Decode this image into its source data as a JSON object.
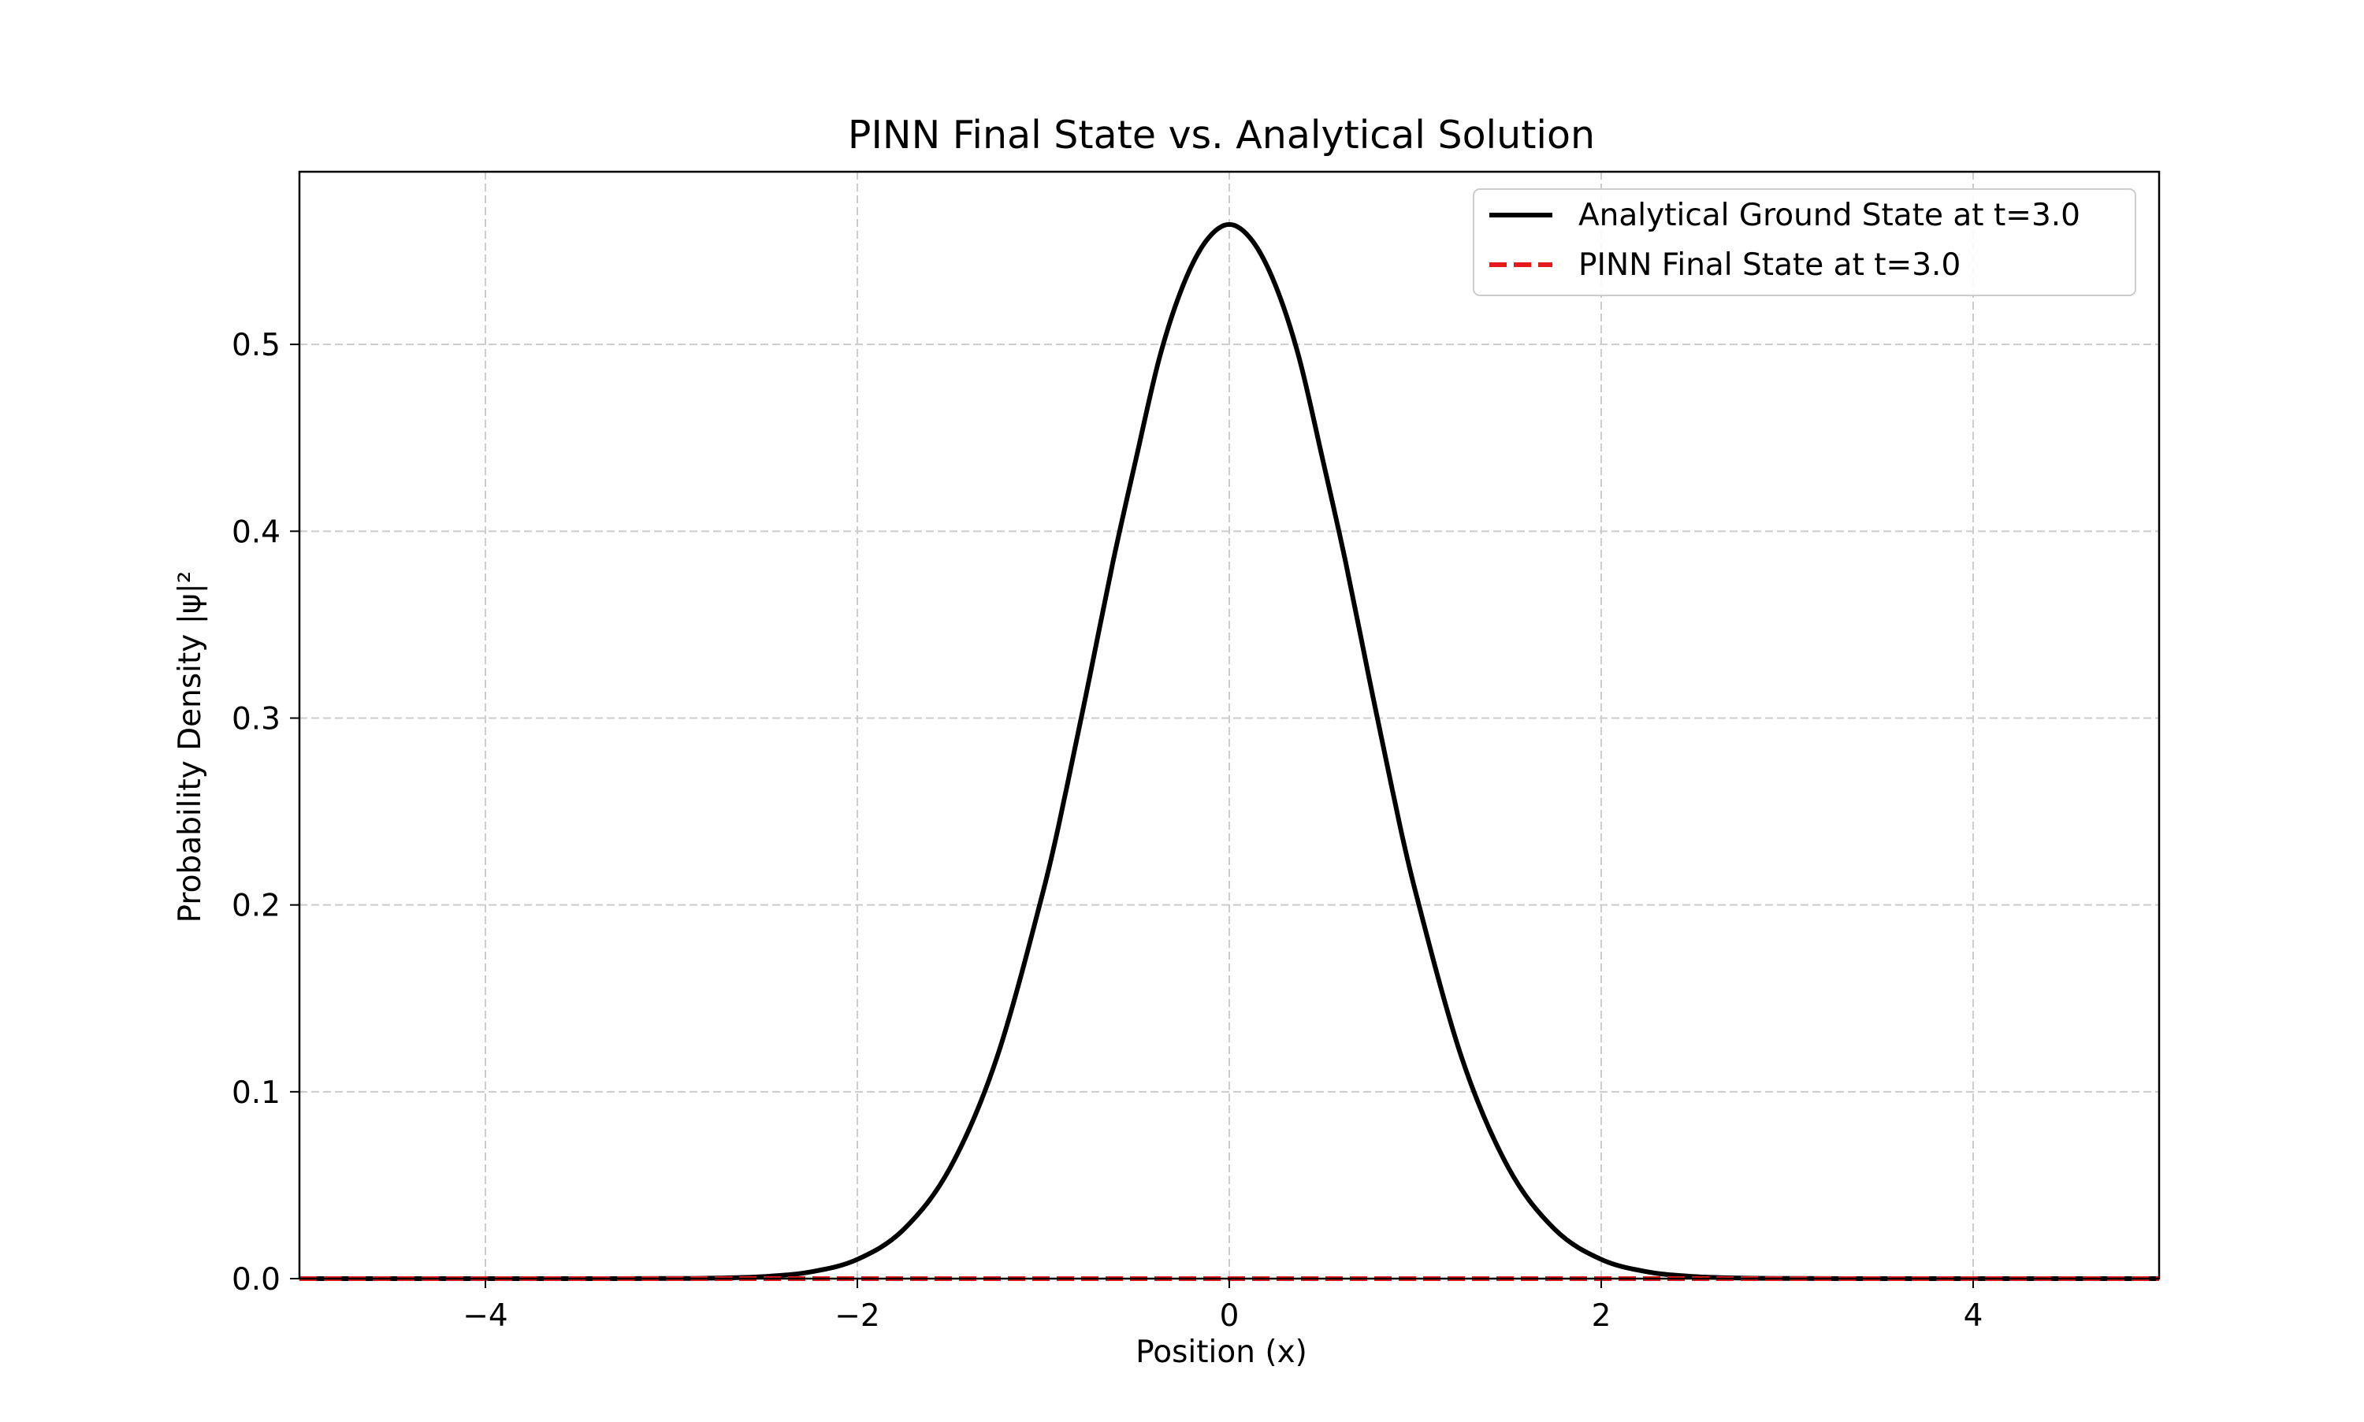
{
  "chart_data": {
    "type": "line",
    "title": "PINN Final State vs. Analytical Solution",
    "xlabel": "Position (x)",
    "ylabel": "Probability Density |ψ|²",
    "xlim": [
      -5,
      5
    ],
    "ylim": [
      0,
      0.5924
    ],
    "xticks": [
      -4,
      -2,
      0,
      2,
      4
    ],
    "xtick_labels": [
      "−4",
      "−2",
      "0",
      "2",
      "4"
    ],
    "yticks": [
      0.0,
      0.1,
      0.2,
      0.3,
      0.4,
      0.5
    ],
    "ytick_labels": [
      "0.0",
      "0.1",
      "0.2",
      "0.3",
      "0.4",
      "0.5"
    ],
    "grid": true,
    "grid_style": "dashed",
    "legend_position": "upper right",
    "series": [
      {
        "name": "Analytical Ground State at t=3.0",
        "color": "#000000",
        "line_style": "solid",
        "x": [
          -5,
          -4.5,
          -4,
          -3.5,
          -3,
          -2.75,
          -2.5,
          -2.25,
          -2,
          -1.75,
          -1.5,
          -1.25,
          -1,
          -0.875,
          -0.75,
          -0.625,
          -0.5,
          -0.375,
          -0.25,
          -0.125,
          0,
          0.125,
          0.25,
          0.375,
          0.5,
          0.625,
          0.75,
          0.875,
          1,
          1.25,
          1.5,
          1.75,
          2,
          2.25,
          2.5,
          2.75,
          3,
          3.5,
          4,
          4.5,
          5
        ],
        "y": [
          0.0,
          0.0,
          0.0,
          0.0,
          0.0001,
          0.0003,
          0.0011,
          0.0036,
          0.0103,
          0.0264,
          0.0595,
          0.1182,
          0.2076,
          0.2624,
          0.3224,
          0.3838,
          0.4394,
          0.493,
          0.5312,
          0.5553,
          0.5642,
          0.5553,
          0.5312,
          0.493,
          0.4394,
          0.3838,
          0.3224,
          0.2624,
          0.2076,
          0.1182,
          0.0595,
          0.0264,
          0.0103,
          0.0036,
          0.0011,
          0.0003,
          0.0001,
          0.0,
          0.0,
          0.0,
          0.0
        ]
      },
      {
        "name": "PINN Final State at t=3.0",
        "color": "#e41a1c",
        "line_style": "dashed",
        "x": [
          -5,
          -2.5,
          0,
          2.5,
          5
        ],
        "y": [
          0.0,
          0.0,
          0.0,
          0.0,
          0.0
        ]
      }
    ]
  }
}
